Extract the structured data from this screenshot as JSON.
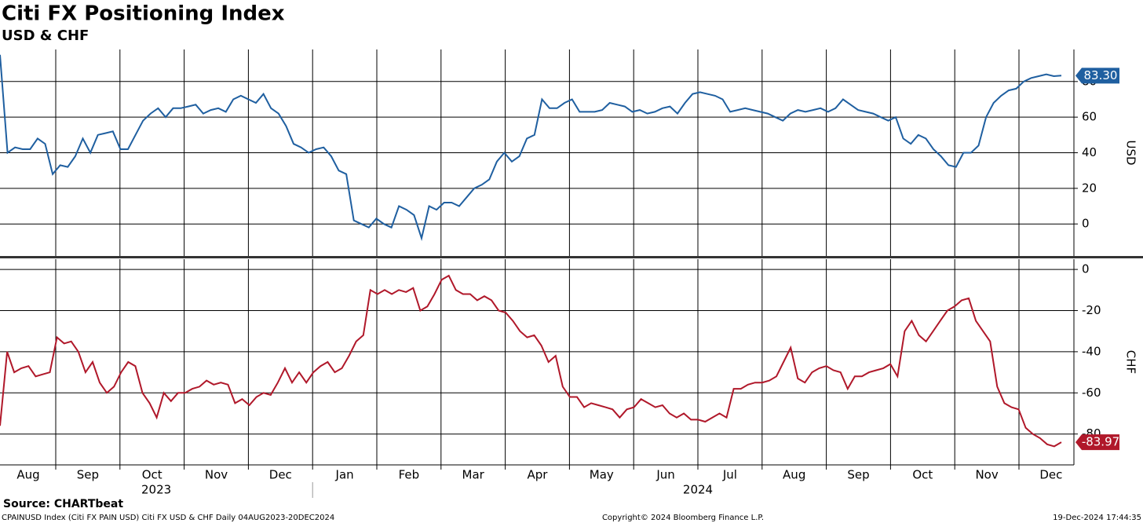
{
  "title": "Citi FX Positioning Index",
  "subtitle": "USD & CHF",
  "chart_data": [
    {
      "type": "line",
      "axis_label": "USD",
      "ylim": [
        -18,
        98
      ],
      "yticks": [
        0,
        20,
        40,
        60,
        80
      ],
      "grid": true,
      "series": [
        {
          "name": "USD",
          "color": "#1f5fa0",
          "last_value_label": "83.30",
          "values": [
            95,
            40,
            43,
            42,
            42,
            48,
            45,
            28,
            33,
            32,
            38,
            48,
            40,
            50,
            51,
            52,
            42,
            42,
            50,
            58,
            62,
            65,
            60,
            65,
            65,
            66,
            67,
            62,
            64,
            65,
            63,
            70,
            72,
            70,
            68,
            73,
            65,
            62,
            55,
            45,
            43,
            40,
            42,
            43,
            38,
            30,
            28,
            2,
            0,
            -2,
            3,
            0,
            -2,
            10,
            8,
            5,
            -8,
            10,
            8,
            12,
            12,
            10,
            15,
            20,
            22,
            25,
            35,
            40,
            35,
            38,
            48,
            50,
            70,
            65,
            65,
            68,
            70,
            63,
            63,
            63,
            64,
            68,
            67,
            66,
            63,
            64,
            62,
            63,
            65,
            66,
            62,
            68,
            73,
            74,
            73,
            72,
            70,
            63,
            64,
            65,
            64,
            63,
            62,
            60,
            58,
            62,
            64,
            63,
            64,
            65,
            63,
            65,
            70,
            67,
            64,
            63,
            62,
            60,
            58,
            60,
            48,
            45,
            50,
            48,
            42,
            38,
            33,
            32,
            40,
            40,
            44,
            60,
            68,
            72,
            75,
            76,
            80,
            82,
            83,
            84,
            83,
            83.3
          ]
        }
      ]
    },
    {
      "type": "line",
      "axis_label": "CHF",
      "ylim": [
        -95,
        5
      ],
      "yticks": [
        -80,
        -60,
        -40,
        -20,
        0
      ],
      "grid": true,
      "series": [
        {
          "name": "CHF",
          "color": "#b0182a",
          "last_value_label": "-83.97",
          "values": [
            -76,
            -40,
            -50,
            -48,
            -47,
            -52,
            -51,
            -50,
            -33,
            -36,
            -35,
            -40,
            -50,
            -45,
            -55,
            -60,
            -57,
            -50,
            -45,
            -47,
            -60,
            -65,
            -72,
            -60,
            -64,
            -60,
            -60,
            -58,
            -57,
            -54,
            -56,
            -55,
            -56,
            -65,
            -63,
            -66,
            -62,
            -60,
            -61,
            -55,
            -48,
            -55,
            -50,
            -55,
            -50,
            -47,
            -45,
            -50,
            -48,
            -42,
            -35,
            -32,
            -10,
            -12,
            -10,
            -12,
            -10,
            -11,
            -9,
            -20,
            -18,
            -12,
            -5,
            -3,
            -10,
            -12,
            -12,
            -15,
            -13,
            -15,
            -20,
            -21,
            -25,
            -30,
            -33,
            -32,
            -37,
            -45,
            -42,
            -57,
            -62,
            -62,
            -67,
            -65,
            -66,
            -67,
            -68,
            -72,
            -68,
            -67,
            -63,
            -65,
            -67,
            -66,
            -70,
            -72,
            -70,
            -73,
            -73,
            -74,
            -72,
            -70,
            -72,
            -58,
            -58,
            -56,
            -55,
            -55,
            -54,
            -52,
            -45,
            -38,
            -53,
            -55,
            -50,
            -48,
            -47,
            -49,
            -50,
            -58,
            -52,
            -52,
            -50,
            -49,
            -48,
            -46,
            -52,
            -30,
            -25,
            -32,
            -35,
            -30,
            -25,
            -20,
            -18,
            -15,
            -14,
            -25,
            -30,
            -35,
            -57,
            -65,
            -67,
            -68,
            -77,
            -80,
            -82,
            -85,
            -86,
            -83.97
          ]
        }
      ]
    }
  ],
  "x_axis": {
    "months": [
      "Aug",
      "Sep",
      "Oct",
      "Nov",
      "Dec",
      "Jan",
      "Feb",
      "Mar",
      "Apr",
      "May",
      "Jun",
      "Jul",
      "Aug",
      "Sep",
      "Oct",
      "Nov",
      "Dec"
    ],
    "years": [
      "2023",
      "2024"
    ]
  },
  "source": "Source: CHARTbeat",
  "footer": {
    "left": "CPAINUSD Index (Citi FX PAIN USD) Citi FX USD & CHF  Daily 04AUG2023-20DEC2024",
    "center": "Copyright© 2024 Bloomberg Finance L.P.",
    "right": "19-Dec-2024 17:44:35"
  }
}
